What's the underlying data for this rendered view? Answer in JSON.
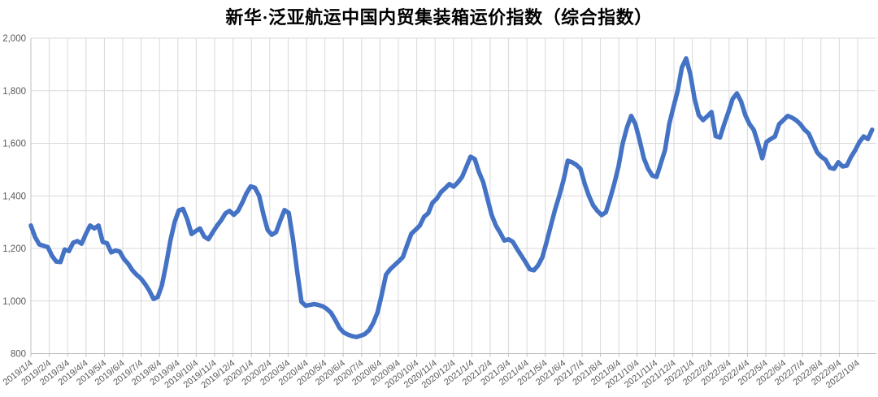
{
  "chart": {
    "title": "新华·泛亚航运中国内贸集装箱运价指数（综合指数）"
  },
  "chart_data": {
    "type": "line",
    "title": "新华·泛亚航运中国内贸集装箱运价指数（综合指数）",
    "series_name": "综合指数",
    "x_start": "2019/1/4",
    "x_frequency": "weekly",
    "xlabel": "",
    "ylabel": "",
    "ylim": [
      800,
      2000
    ],
    "grid": "both",
    "legend_position": "none",
    "line_color": "#4472C4",
    "grid_color": "#D9D9D9",
    "tick_label_color": "#595959",
    "y_ticks": [
      800,
      1000,
      1200,
      1400,
      1600,
      1800,
      2000
    ],
    "y_tick_labels": [
      "800",
      "1,000",
      "1,200",
      "1,400",
      "1,600",
      "1,800",
      "2,000"
    ],
    "x_tick_labels": [
      "2019/1/4",
      "2019/2/4",
      "2019/3/4",
      "2019/4/4",
      "2019/5/4",
      "2019/6/4",
      "2019/7/4",
      "2019/8/4",
      "2019/9/4",
      "2019/10/4",
      "2019/11/4",
      "2019/12/4",
      "2020/1/4",
      "2020/2/4",
      "2020/3/4",
      "2020/4/4",
      "2020/5/4",
      "2020/6/4",
      "2020/7/4",
      "2020/8/4",
      "2020/9/4",
      "2020/10/4",
      "2020/11/4",
      "2020/12/4",
      "2021/1/4",
      "2021/2/4",
      "2021/3/4",
      "2021/4/4",
      "2021/5/4",
      "2021/6/4",
      "2021/7/4",
      "2021/8/4",
      "2021/9/4",
      "2021/10/4",
      "2021/11/4",
      "2021/12/4",
      "2022/1/4",
      "2022/2/4",
      "2022/3/4",
      "2022/4/4",
      "2022/5/4",
      "2022/6/4",
      "2022/7/4",
      "2022/8/4",
      "2022/9/4",
      "2022/10/4"
    ],
    "values": [
      1287,
      1243,
      1215,
      1210,
      1205,
      1172,
      1150,
      1148,
      1196,
      1190,
      1222,
      1228,
      1218,
      1255,
      1287,
      1276,
      1287,
      1224,
      1220,
      1185,
      1192,
      1188,
      1160,
      1142,
      1117,
      1100,
      1086,
      1065,
      1040,
      1008,
      1015,
      1060,
      1140,
      1230,
      1300,
      1345,
      1350,
      1310,
      1255,
      1266,
      1276,
      1245,
      1235,
      1261,
      1286,
      1307,
      1333,
      1343,
      1328,
      1343,
      1374,
      1410,
      1436,
      1431,
      1400,
      1330,
      1270,
      1252,
      1262,
      1306,
      1346,
      1335,
      1235,
      1111,
      997,
      982,
      985,
      988,
      985,
      980,
      970,
      955,
      928,
      898,
      880,
      872,
      866,
      863,
      868,
      874,
      889,
      917,
      957,
      1025,
      1100,
      1121,
      1136,
      1151,
      1167,
      1213,
      1256,
      1271,
      1287,
      1320,
      1334,
      1374,
      1389,
      1414,
      1429,
      1445,
      1435,
      1451,
      1472,
      1510,
      1549,
      1540,
      1490,
      1452,
      1389,
      1327,
      1287,
      1260,
      1230,
      1235,
      1225,
      1198,
      1173,
      1148,
      1121,
      1117,
      1136,
      1167,
      1225,
      1287,
      1348,
      1401,
      1460,
      1534,
      1528,
      1518,
      1503,
      1446,
      1400,
      1364,
      1343,
      1327,
      1337,
      1389,
      1446,
      1512,
      1600,
      1660,
      1704,
      1673,
      1611,
      1543,
      1503,
      1477,
      1472,
      1523,
      1574,
      1673,
      1738,
      1800,
      1889,
      1923,
      1862,
      1769,
      1707,
      1688,
      1703,
      1719,
      1627,
      1622,
      1673,
      1719,
      1769,
      1790,
      1759,
      1707,
      1673,
      1651,
      1600,
      1543,
      1605,
      1616,
      1626,
      1673,
      1688,
      1704,
      1698,
      1688,
      1673,
      1652,
      1637,
      1601,
      1565,
      1548,
      1537,
      1507,
      1503,
      1528,
      1512,
      1515,
      1548,
      1574,
      1605,
      1626,
      1616,
      1652
    ]
  }
}
